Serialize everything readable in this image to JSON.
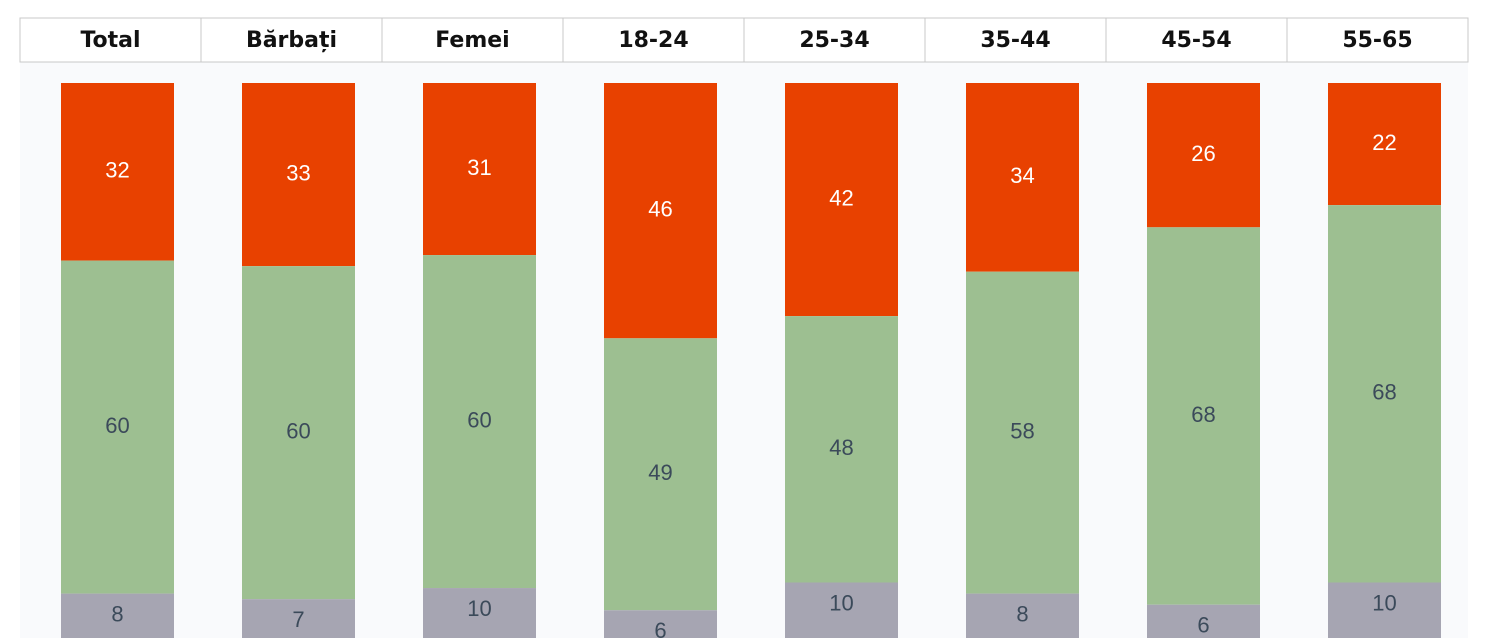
{
  "chart_data": {
    "type": "stacked_bar",
    "categories": [
      "Total",
      "Bărbați",
      "Femei",
      "18-24",
      "25-34",
      "35-44",
      "45-54",
      "55-65"
    ],
    "series": [
      {
        "color": "#e84100",
        "values": [
          32,
          33,
          31,
          46,
          42,
          34,
          26,
          22
        ]
      },
      {
        "color": "#9dbf91",
        "values": [
          60,
          60,
          60,
          49,
          48,
          58,
          68,
          68
        ]
      },
      {
        "color": "#a6a5b2",
        "values": [
          8,
          7,
          10,
          6,
          10,
          8,
          6,
          10
        ]
      }
    ],
    "ylim": [
      0,
      100
    ]
  }
}
